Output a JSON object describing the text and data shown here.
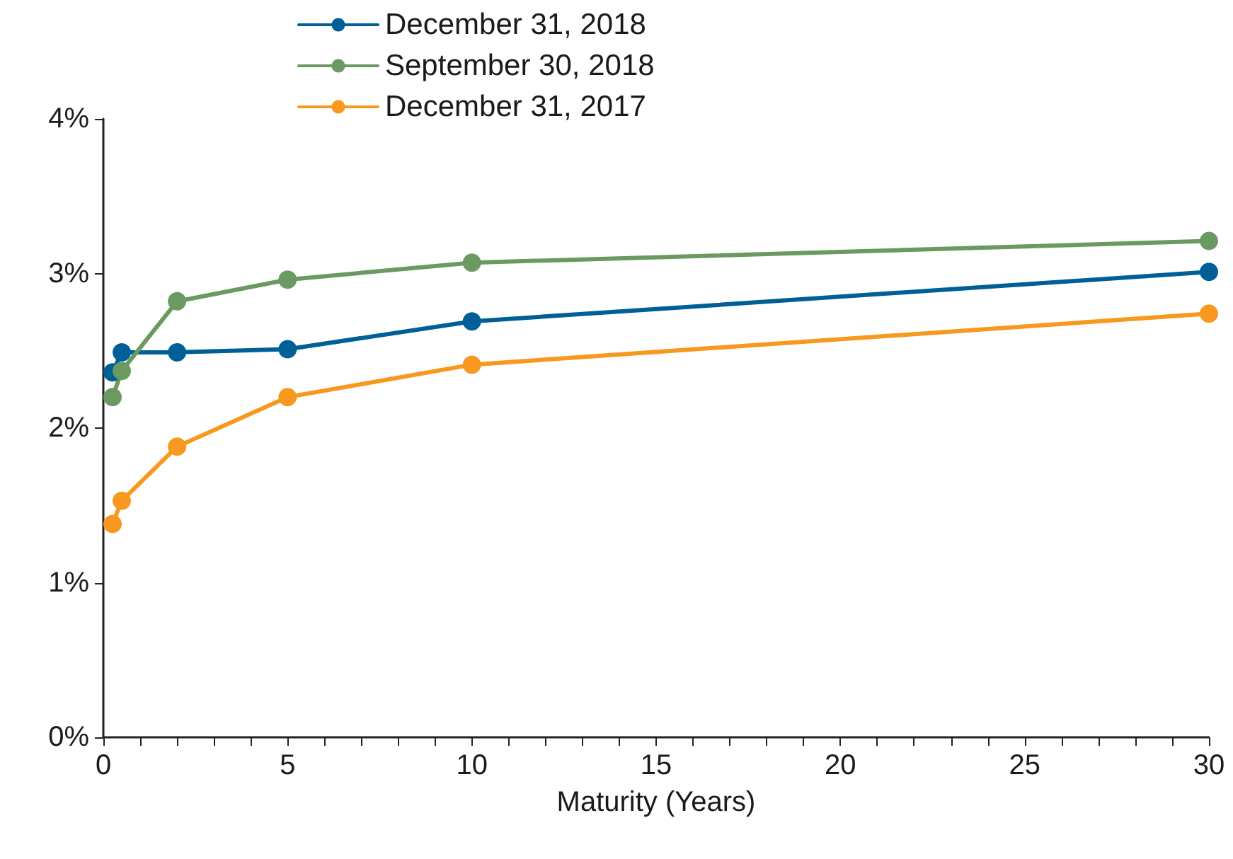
{
  "chart_data": {
    "type": "line",
    "xlabel": "Maturity (Years)",
    "x": [
      0.25,
      0.5,
      2,
      5,
      10,
      30
    ],
    "series": [
      {
        "name": "December 31, 2018",
        "color": "#005f96",
        "values": [
          2.36,
          2.49,
          2.49,
          2.51,
          2.69,
          3.01
        ]
      },
      {
        "name": "September 30, 2018",
        "color": "#6a9a62",
        "values": [
          2.2,
          2.37,
          2.82,
          2.96,
          3.07,
          3.21
        ]
      },
      {
        "name": "December 31, 2017",
        "color": "#f7991e",
        "values": [
          1.38,
          1.53,
          1.88,
          2.2,
          2.41,
          2.74
        ]
      }
    ],
    "xlim": [
      0,
      30
    ],
    "xticks": [
      0,
      {
        "value": 1,
        "label": null
      },
      {
        "value": 2,
        "label": null
      },
      {
        "value": 3,
        "label": null
      },
      {
        "value": 4,
        "label": null
      },
      5,
      {
        "value": 6,
        "label": null
      },
      {
        "value": 7,
        "label": null
      },
      {
        "value": 8,
        "label": null
      },
      {
        "value": 9,
        "label": null
      },
      10,
      {
        "value": 11,
        "label": null
      },
      {
        "value": 12,
        "label": null
      },
      {
        "value": 13,
        "label": null
      },
      {
        "value": 14,
        "label": null
      },
      15,
      {
        "value": 16,
        "label": null
      },
      {
        "value": 17,
        "label": null
      },
      {
        "value": 18,
        "label": null
      },
      {
        "value": 19,
        "label": null
      },
      20,
      {
        "value": 21,
        "label": null
      },
      {
        "value": 22,
        "label": null
      },
      {
        "value": 23,
        "label": null
      },
      {
        "value": 24,
        "label": null
      },
      25,
      {
        "value": 26,
        "label": null
      },
      {
        "value": 27,
        "label": null
      },
      {
        "value": 28,
        "label": null
      },
      {
        "value": 29,
        "label": null
      },
      30
    ],
    "ylim": [
      0,
      4
    ],
    "yticks": [
      {
        "value": 0,
        "label": "0%"
      },
      {
        "value": 1,
        "label": "1%"
      },
      {
        "value": 2,
        "label": "2%"
      },
      {
        "value": 3,
        "label": "3%"
      },
      {
        "value": 4,
        "label": "4%"
      }
    ],
    "grid": false,
    "legend": "top",
    "marker": "circle",
    "line_style": "solid"
  }
}
